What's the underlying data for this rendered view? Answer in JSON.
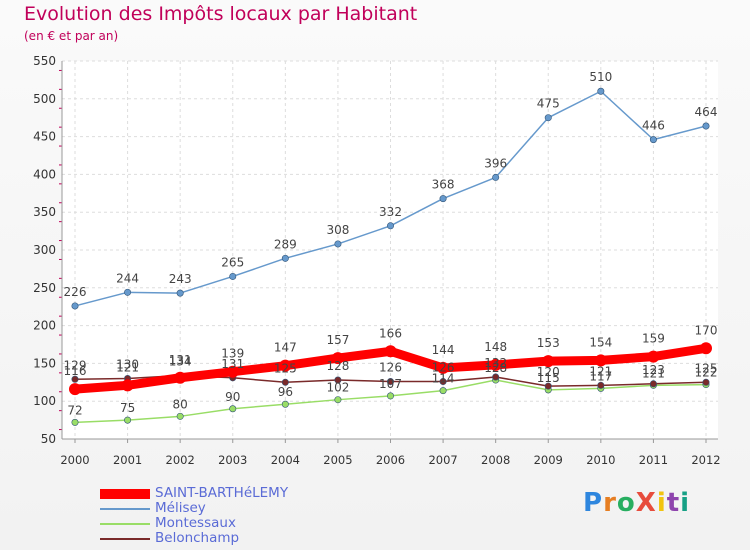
{
  "header": {
    "title": "Evolution des Impôts locaux par Habitant",
    "subtitle": "(en € et par an)"
  },
  "logo": {
    "text": "ProXiti"
  },
  "chart_data": {
    "type": "line",
    "title": "Evolution des Impôts locaux par Habitant",
    "subtitle": "(en € et par an)",
    "xlabel": "",
    "ylabel": "",
    "x": [
      2000,
      2001,
      2002,
      2003,
      2004,
      2005,
      2006,
      2007,
      2008,
      2009,
      2010,
      2011,
      2012
    ],
    "x_tick_labels": [
      "2000",
      "2001",
      "2002",
      "2003",
      "2004",
      "2005",
      "2006",
      "2007",
      "2008",
      "2009",
      "2010",
      "2011",
      "2012"
    ],
    "ylim": [
      50,
      550
    ],
    "y_ticks": [
      50,
      100,
      150,
      200,
      250,
      300,
      350,
      400,
      450,
      500,
      550
    ],
    "y_tick_labels": [
      "50",
      "100",
      "150",
      "200",
      "250",
      "300",
      "350",
      "400",
      "450",
      "500",
      "550"
    ],
    "grid": "horizontal",
    "legend": "bottom-left",
    "series": [
      {
        "name": "SAINT-BARTHéLEMY",
        "color": "#ff0000",
        "values": [
          116,
          121,
          131,
          139,
          147,
          157,
          166,
          144,
          148,
          153,
          154,
          159,
          170
        ]
      },
      {
        "name": "Mélisey",
        "color": "#6699cc",
        "values": [
          226,
          244,
          243,
          265,
          289,
          308,
          332,
          368,
          396,
          475,
          510,
          446,
          464
        ]
      },
      {
        "name": "Montessaux",
        "color": "#99dd66",
        "values": [
          72,
          75,
          80,
          90,
          96,
          102,
          107,
          114,
          128,
          115,
          117,
          121,
          122
        ]
      },
      {
        "name": "Belonchamp",
        "color": "#7a2a2a",
        "values": [
          129,
          130,
          134,
          131,
          125,
          128,
          126,
          126,
          132,
          120,
          121,
          123,
          125
        ]
      }
    ]
  }
}
